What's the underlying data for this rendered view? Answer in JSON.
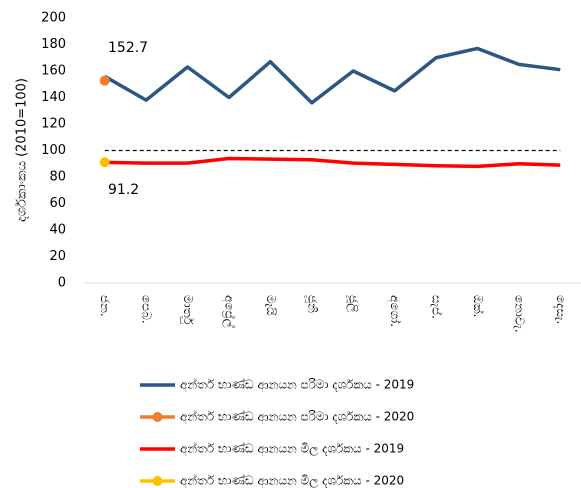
{
  "chart_data": {
    "type": "line",
    "y_label": "දර්ශකාංකය (2010=100)",
    "categories": [
      "ජන.",
      "පෙබ.",
      "මාර්තු",
      "අප්‍රේල්",
      "මැයි",
      "ජූනි",
      "ජූලි",
      "අගෝ.",
      "සැප්.",
      "ඔක්.",
      "නොවැ.",
      "දෙසැ."
    ],
    "series": [
      {
        "name": "අන්තර් භාණ්ඩ ආනයන පරිමා දර්ශකය - 2019",
        "color": "#2a5783",
        "marker": false,
        "values": [
          156,
          138,
          163,
          140,
          167,
          136,
          160,
          145,
          170,
          177,
          165,
          161
        ]
      },
      {
        "name": "අන්තර් භාණ්ඩ ආනයන පරිමා දර්ශකය - 2020",
        "color": "#ed7d31",
        "marker": true,
        "values": [
          152.7,
          null,
          null,
          null,
          null,
          null,
          null,
          null,
          null,
          null,
          null,
          null
        ]
      },
      {
        "name": "අන්තර් භාණ්ඩ ආනයන මිල දර්ශකය - 2019",
        "color": "#ff0000",
        "marker": false,
        "values": [
          91,
          90.5,
          90.5,
          94,
          93.5,
          93,
          90.5,
          89.5,
          88.5,
          88,
          90,
          89
        ]
      },
      {
        "name": "අන්තර් භාණ්ඩ ආනයන මිල දර්ශකය - 2020",
        "color": "#ffc000",
        "marker": true,
        "values": [
          91.2,
          null,
          null,
          null,
          null,
          null,
          null,
          null,
          null,
          null,
          null,
          null
        ]
      }
    ],
    "annotations": [
      "152.7",
      "91.2"
    ],
    "reference_line": 100,
    "ylim": [
      0,
      200
    ],
    "yticks": [
      0,
      20,
      40,
      60,
      80,
      100,
      120,
      140,
      160,
      180,
      200
    ],
    "grid": false,
    "legend": "bottom"
  }
}
